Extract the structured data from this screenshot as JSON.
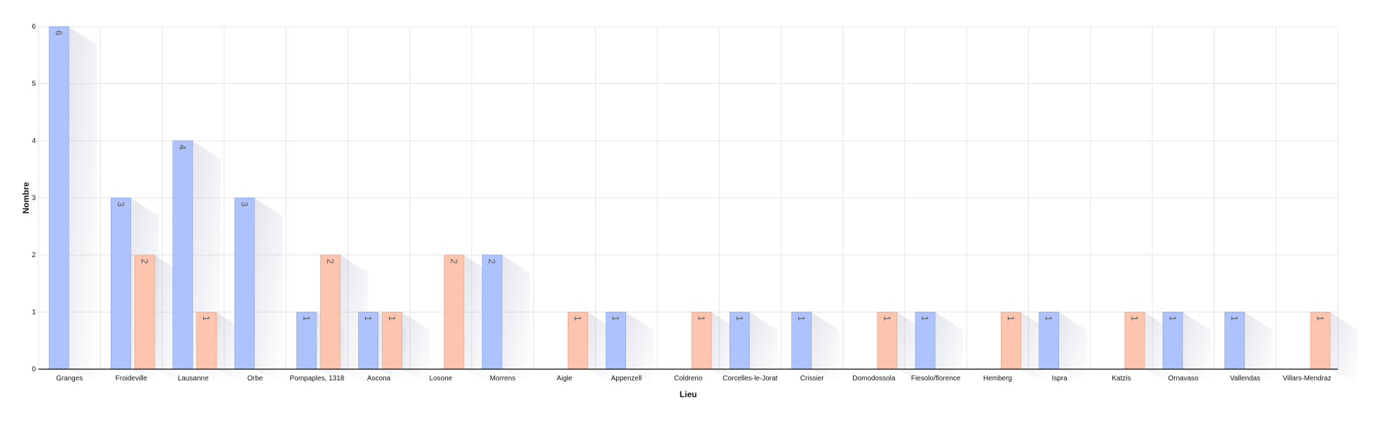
{
  "chart_data": {
    "type": "bar",
    "xlabel": "Lieu",
    "ylabel": "Nombre",
    "ylim": [
      0,
      6
    ],
    "yticks": [
      0,
      1,
      2,
      3,
      4,
      5,
      6
    ],
    "grid": true,
    "categories": [
      "Granges",
      "Froideville",
      "Lausanne",
      "Orbe",
      "Pompaples, 1318",
      "Ascona",
      "Losone",
      "Morrens",
      "Aigle",
      "Appenzell",
      "Coldrerio",
      "Corcelles-le-Jorat",
      "Crissier",
      "Domodossola",
      "Fiesolo/florence",
      "Hemberg",
      "Ispra",
      "Katzis",
      "Ornavaso",
      "Vallendas",
      "Villars-Mendraz"
    ],
    "series": [
      {
        "color": "#aec3fb",
        "values": [
          6,
          3,
          4,
          3,
          1,
          1,
          0,
          2,
          0,
          1,
          0,
          1,
          1,
          0,
          1,
          0,
          1,
          0,
          1,
          1,
          0
        ]
      },
      {
        "color": "#fdc5ae",
        "values": [
          0,
          2,
          1,
          0,
          2,
          1,
          2,
          0,
          1,
          0,
          1,
          0,
          0,
          1,
          0,
          1,
          0,
          1,
          0,
          0,
          1
        ]
      }
    ]
  }
}
